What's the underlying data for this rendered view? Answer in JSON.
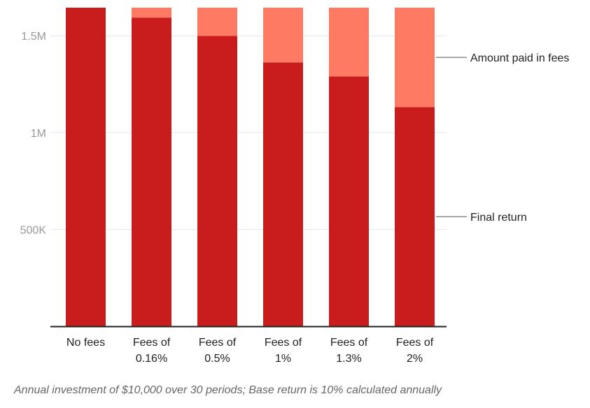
{
  "colors": {
    "final_return": "#c91d1d",
    "fees": "#ff7a62",
    "grid": "#e6e6e6",
    "axis": "#222222"
  },
  "chart_data": {
    "type": "bar",
    "stacked": true,
    "categories": [
      [
        "No fees"
      ],
      [
        "Fees of",
        "0.16%"
      ],
      [
        "Fees of",
        "0.5%"
      ],
      [
        "Fees of",
        "1%"
      ],
      [
        "Fees of",
        "1.3%"
      ],
      [
        "Fees of",
        "2%"
      ]
    ],
    "series": [
      {
        "name": "Final return",
        "values": [
          1645000,
          1594000,
          1499000,
          1362000,
          1290000,
          1132000
        ]
      },
      {
        "name": "Amount paid in fees",
        "values": [
          0,
          51000,
          146000,
          283000,
          355000,
          513000
        ]
      }
    ],
    "ylim": [
      0,
      1645000
    ],
    "yticks": [
      {
        "value": 500000,
        "label": "500K"
      },
      {
        "value": 1000000,
        "label": "1M"
      },
      {
        "value": 1500000,
        "label": "1.5M"
      }
    ],
    "grid": true,
    "legend_placement": "right, labels pointing to last bar",
    "note": "Annual investment of $10,000 over 30 periods; Base return is 10% calculated annually"
  }
}
